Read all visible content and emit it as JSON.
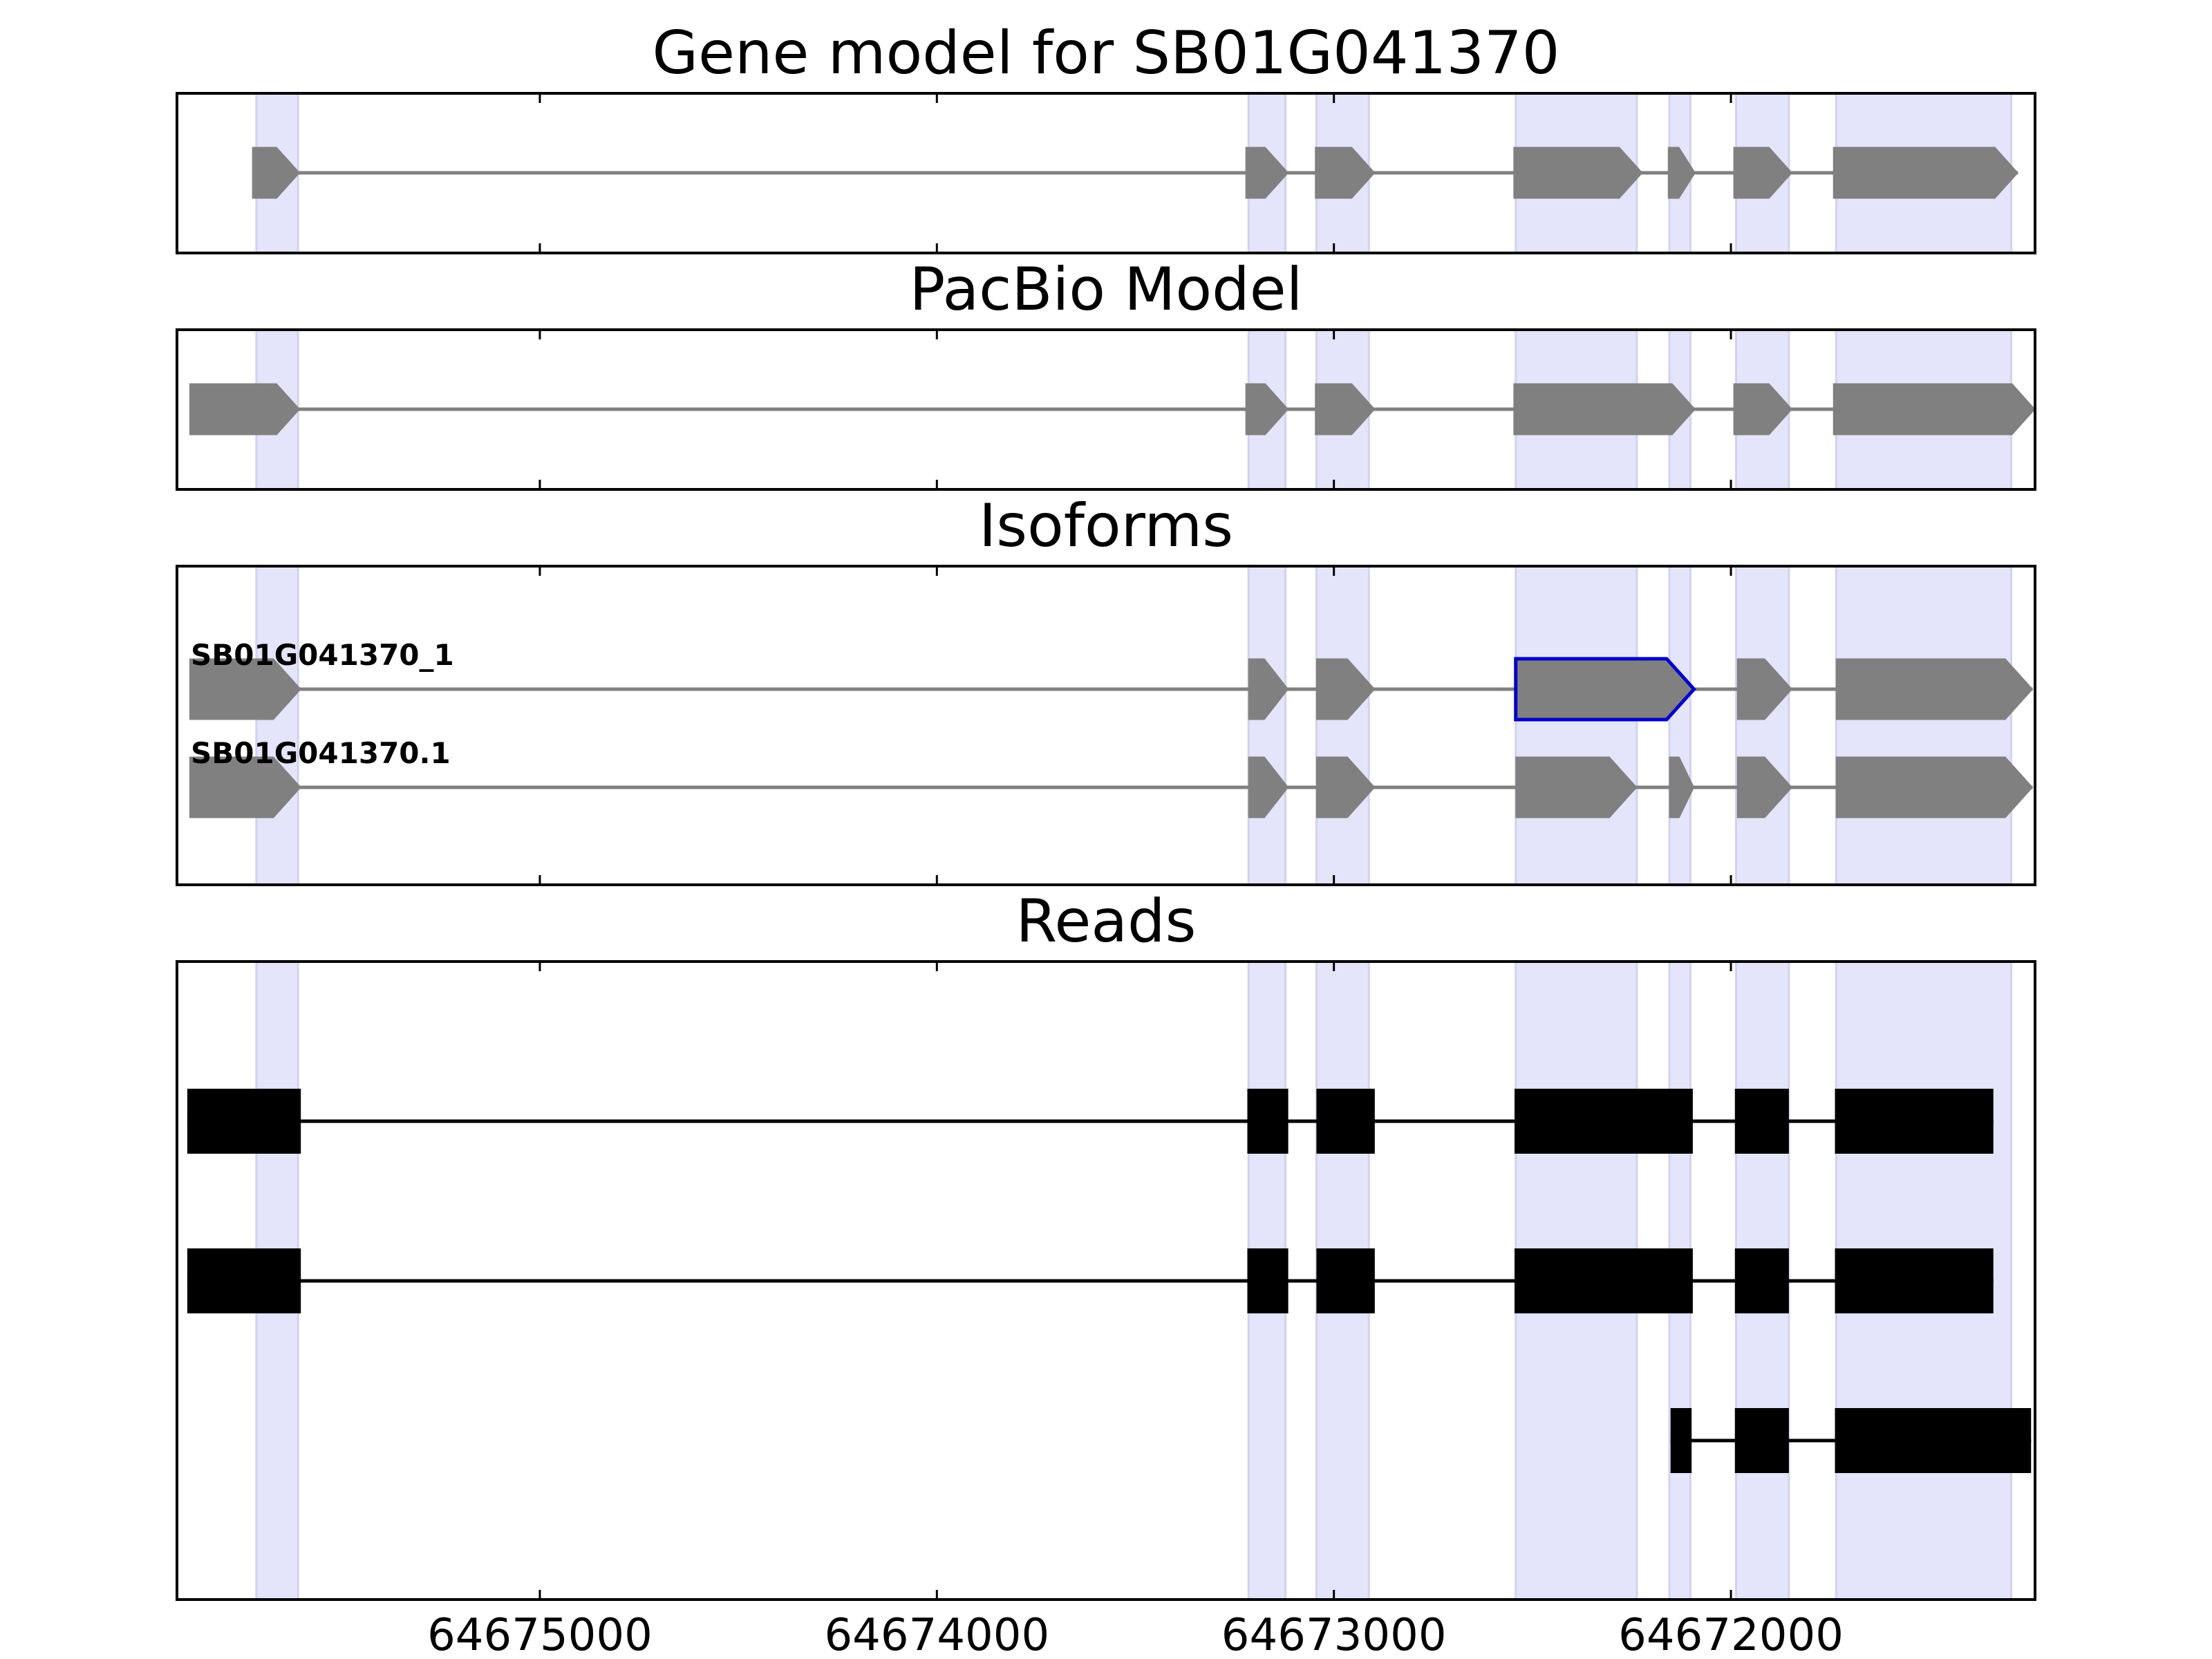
{
  "figure": {
    "panels": [
      {
        "id": "gene-model",
        "title": "Gene model for SB01G041370"
      },
      {
        "id": "pacbio-model",
        "title": "PacBio Model"
      },
      {
        "id": "isoforms",
        "title": "Isoforms"
      },
      {
        "id": "reads",
        "title": "Reads"
      }
    ],
    "x_axis": {
      "direction": "descending (reversed axis)",
      "range": [
        64675914,
        64671234
      ],
      "ticks": [
        64675000,
        64674000,
        64673000,
        64672000
      ],
      "tick_labels": [
        "64675000",
        "64674000",
        "64673000",
        "64672000"
      ]
    }
  },
  "colors": {
    "exon_fill": "#808080",
    "intron_line": "#808080",
    "read_fill": "#000000",
    "highlight_band": "#e4e4fa",
    "selected_exon_outline": "#0000cc"
  },
  "highlight_regions": [
    [
      64675714,
      64675609
    ],
    [
      64673215,
      64673122
    ],
    [
      64673044,
      64672912
    ],
    [
      64672542,
      64672237
    ],
    [
      64672155,
      64672102
    ],
    [
      64671987,
      64671854
    ],
    [
      64671735,
      64671294
    ]
  ],
  "gene_model": {
    "strand": "-",
    "exons": [
      [
        64675724,
        64675605
      ],
      [
        64673222,
        64673115
      ],
      [
        64673047,
        64672897
      ],
      [
        64672547,
        64672223
      ],
      [
        64672158,
        64672090
      ],
      [
        64671993,
        64671846
      ],
      [
        64671742,
        64671277
      ]
    ]
  },
  "pacbio_model": {
    "strand": "-",
    "exons": [
      [
        64675882,
        64675605
      ],
      [
        64673222,
        64673115
      ],
      [
        64673047,
        64672897
      ],
      [
        64672547,
        64672090
      ],
      [
        64671993,
        64671846
      ],
      [
        64671742,
        64671234
      ]
    ]
  },
  "isoforms": [
    {
      "name": "SB01G041370_1",
      "strand": "-",
      "selected_exon": 3,
      "exons": [
        [
          64675882,
          64675602
        ],
        [
          64673215,
          64673115
        ],
        [
          64673044,
          64672897
        ],
        [
          64672542,
          64672093
        ],
        [
          64671984,
          64671846
        ],
        [
          64671735,
          64671240
        ]
      ]
    },
    {
      "name": "SB01G041370.1",
      "strand": "-",
      "exons": [
        [
          64675882,
          64675602
        ],
        [
          64673215,
          64673115
        ],
        [
          64673044,
          64672897
        ],
        [
          64672542,
          64672237
        ],
        [
          64672155,
          64672093
        ],
        [
          64671984,
          64671846
        ],
        [
          64671735,
          64671240
        ]
      ]
    }
  ],
  "reads": [
    {
      "exons": [
        [
          64675888,
          64675602
        ],
        [
          64673218,
          64673115
        ],
        [
          64673044,
          64672897
        ],
        [
          64672545,
          64672096
        ],
        [
          64671990,
          64671854
        ],
        [
          64671738,
          64671339
        ]
      ]
    },
    {
      "exons": [
        [
          64675888,
          64675602
        ],
        [
          64673218,
          64673115
        ],
        [
          64673044,
          64672897
        ],
        [
          64672545,
          64672096
        ],
        [
          64671990,
          64671854
        ],
        [
          64671738,
          64671339
        ]
      ]
    },
    {
      "exons": [
        [
          64672152,
          64672099
        ],
        [
          64671990,
          64671854
        ],
        [
          64671738,
          64671244
        ]
      ]
    }
  ]
}
